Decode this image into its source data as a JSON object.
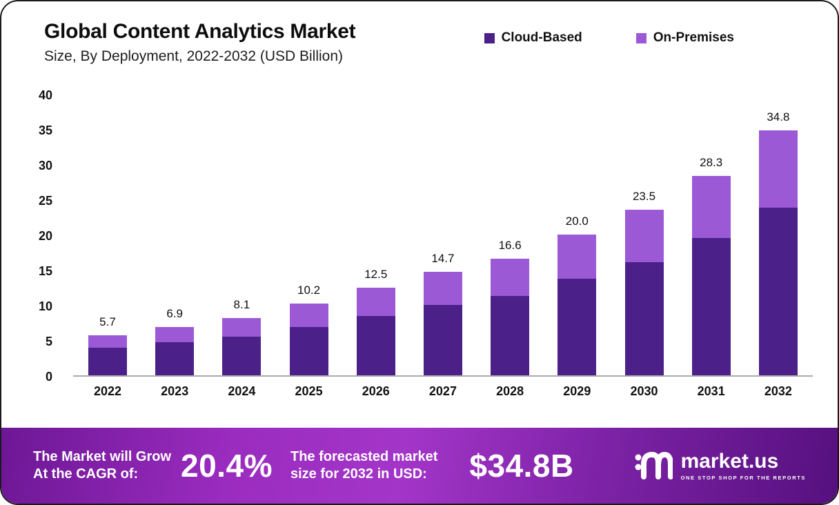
{
  "page": {
    "title": "Global Content Analytics Market",
    "subtitle": "Size, By Deployment, 2022-2032 (USD Billion)"
  },
  "legend": [
    {
      "label": "Cloud-Based",
      "color": "#4b2088"
    },
    {
      "label": "On-Premises",
      "color": "#9c59d6"
    }
  ],
  "chart_data": {
    "type": "bar",
    "stacked": true,
    "title": "Global Content Analytics Market Size, By Deployment, 2022-2032 (USD Billion)",
    "categories": [
      "2022",
      "2023",
      "2024",
      "2025",
      "2026",
      "2027",
      "2028",
      "2029",
      "2030",
      "2031",
      "2032"
    ],
    "series": [
      {
        "name": "Cloud-Based",
        "color": "#4b2088",
        "values": [
          3.9,
          4.7,
          5.5,
          6.9,
          8.4,
          10.0,
          11.3,
          13.7,
          16.1,
          19.5,
          23.8
        ]
      },
      {
        "name": "On-Premises",
        "color": "#9c59d6",
        "values": [
          1.8,
          2.2,
          2.6,
          3.3,
          4.1,
          4.7,
          5.3,
          6.3,
          7.4,
          8.8,
          11.0
        ]
      }
    ],
    "totals": [
      5.7,
      6.9,
      8.1,
      10.2,
      12.5,
      14.7,
      16.6,
      20.0,
      23.5,
      28.3,
      34.8
    ],
    "total_labels": [
      "5.7",
      "6.9",
      "8.1",
      "10.2",
      "12.5",
      "14.7",
      "16.6",
      "20.0",
      "23.5",
      "28.3",
      "34.8"
    ],
    "xlabel": "",
    "ylabel": "",
    "ylim": [
      0,
      40
    ],
    "yticks": [
      0,
      5,
      10,
      15,
      20,
      25,
      30,
      35,
      40
    ],
    "grid": false,
    "legend_position": "top-right"
  },
  "banner": {
    "cagr_line1": "The Market will Grow",
    "cagr_line2": "At the CAGR of:",
    "cagr_value": "20.4%",
    "forecast_line1": "The forecasted market",
    "forecast_line2": "size for 2032 in USD:",
    "forecast_value": "$34.8B",
    "brand_name": "market.us",
    "brand_tagline": "ONE STOP SHOP FOR THE REPORTS"
  }
}
